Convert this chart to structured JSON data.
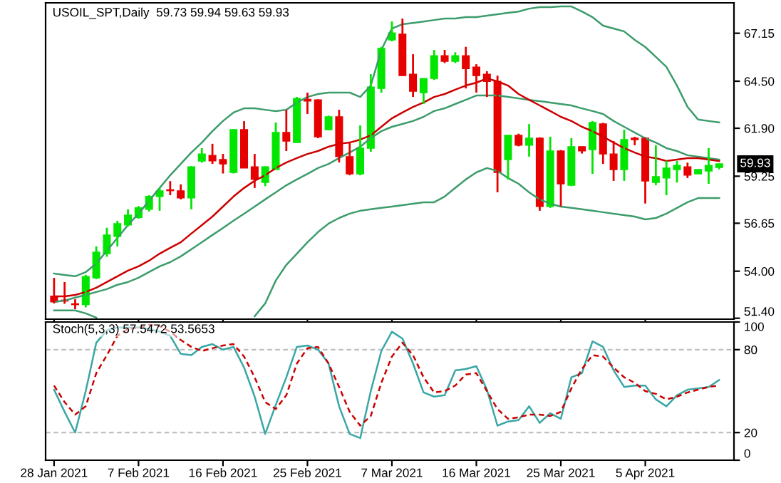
{
  "chart_data": [
    {
      "type": "candlestick",
      "title": "USOIL_SPT,Daily  59.73 59.94 59.63 59.93",
      "ohlc": [
        [
          52.62,
          53.63,
          52.22,
          52.3
        ],
        [
          52.4,
          53.4,
          52.2,
          52.35
        ],
        [
          52.2,
          52.45,
          51.9,
          52.15
        ],
        [
          52.15,
          53.8,
          52.0,
          53.7
        ],
        [
          53.63,
          55.37,
          53.56,
          55.05
        ],
        [
          54.97,
          56.4,
          54.8,
          56.0
        ],
        [
          55.92,
          56.79,
          55.37,
          56.63
        ],
        [
          56.55,
          57.42,
          56.47,
          57.1
        ],
        [
          56.97,
          57.6,
          56.9,
          57.5
        ],
        [
          57.42,
          58.2,
          57.3,
          58.13
        ],
        [
          58.13,
          58.6,
          57.34,
          58.44
        ],
        [
          58.5,
          58.98,
          58.2,
          58.45
        ],
        [
          58.44,
          58.8,
          57.97,
          58.05
        ],
        [
          58.05,
          59.8,
          57.42,
          59.77
        ],
        [
          60.09,
          60.8,
          60.0,
          60.48
        ],
        [
          60.4,
          61.04,
          59.93,
          60.1
        ],
        [
          60.17,
          60.48,
          59.4,
          59.93
        ],
        [
          59.46,
          61.85,
          59.4,
          61.82
        ],
        [
          61.82,
          62.29,
          59.7,
          59.7
        ],
        [
          59.77,
          60.48,
          58.6,
          59.07
        ],
        [
          58.91,
          59.8,
          58.7,
          59.77
        ],
        [
          59.62,
          62.22,
          59.62,
          61.67
        ],
        [
          61.67,
          62.92,
          60.64,
          61.19
        ],
        [
          61.11,
          63.63,
          61.11,
          63.55
        ],
        [
          63.5,
          63.87,
          62.69,
          63.4
        ],
        [
          63.47,
          63.5,
          61.35,
          61.43
        ],
        [
          61.82,
          62.6,
          61.8,
          62.53
        ],
        [
          62.53,
          62.92,
          60.01,
          60.33
        ],
        [
          60.33,
          61.11,
          59.3,
          59.38
        ],
        [
          59.38,
          62.06,
          59.3,
          60.8
        ],
        [
          60.8,
          64.89,
          60.6,
          64.18
        ],
        [
          64.1,
          66.4,
          63.87,
          66.31
        ],
        [
          66.78,
          67.8,
          66.7,
          67.17
        ],
        [
          67.1,
          67.96,
          64.81,
          64.81
        ],
        [
          64.89,
          65.99,
          63.63,
          63.95
        ],
        [
          63.87,
          64.65,
          63.24,
          64.65
        ],
        [
          64.65,
          66.23,
          64.57,
          65.91
        ],
        [
          65.91,
          66.23,
          65.5,
          65.6
        ],
        [
          65.6,
          66.1,
          65.5,
          65.91
        ],
        [
          65.91,
          66.4,
          64.1,
          65.2
        ],
        [
          65.28,
          65.44,
          63.87,
          64.81
        ],
        [
          64.89,
          65.05,
          63.63,
          64.49
        ],
        [
          64.49,
          64.81,
          58.36,
          59.46
        ],
        [
          60.17,
          61.51,
          59.07,
          61.51
        ],
        [
          61.51,
          61.6,
          60.9,
          60.96
        ],
        [
          60.96,
          62.13,
          60.33,
          61.35
        ],
        [
          61.35,
          61.4,
          57.34,
          57.58
        ],
        [
          57.58,
          61.43,
          57.5,
          60.64
        ],
        [
          60.64,
          60.7,
          57.58,
          58.83
        ],
        [
          58.75,
          61.35,
          58.7,
          60.88
        ],
        [
          60.88,
          60.9,
          60.5,
          60.65
        ],
        [
          60.72,
          62.3,
          59.38,
          62.22
        ],
        [
          62.14,
          62.2,
          59.93,
          60.48
        ],
        [
          60.48,
          61.19,
          58.99,
          59.62
        ],
        [
          59.62,
          61.82,
          58.99,
          61.27
        ],
        [
          61.35,
          61.43,
          60.96,
          61.27
        ],
        [
          61.35,
          61.4,
          57.74,
          58.99
        ],
        [
          58.91,
          60.96,
          58.75,
          59.23
        ],
        [
          59.15,
          60.1,
          58.2,
          59.7
        ],
        [
          59.62,
          60.09,
          58.9,
          59.85
        ],
        [
          59.77,
          60.0,
          59.15,
          59.31
        ],
        [
          59.38,
          59.62,
          59.38,
          59.62
        ],
        [
          59.54,
          60.8,
          58.83,
          59.85
        ],
        [
          59.73,
          59.94,
          59.63,
          59.93
        ]
      ],
      "colors": [
        "#e60000",
        "#e60000",
        "#e60000",
        "#00e600",
        "#00e600",
        "#00e600",
        "#00e600",
        "#00e600",
        "#00e600",
        "#00e600",
        "#00e600",
        "#e60000",
        "#e60000",
        "#00e600",
        "#00e600",
        "#e60000",
        "#e60000",
        "#00e600",
        "#e60000",
        "#e60000",
        "#00e600",
        "#00e600",
        "#e60000",
        "#00e600",
        "#e60000",
        "#e60000",
        "#00e600",
        "#e60000",
        "#e60000",
        "#00e600",
        "#00e600",
        "#00e600",
        "#00e600",
        "#e60000",
        "#e60000",
        "#00e600",
        "#00e600",
        "#e60000",
        "#00e600",
        "#e60000",
        "#e60000",
        "#e60000",
        "#e60000",
        "#00e600",
        "#e60000",
        "#00e600",
        "#e60000",
        "#00e600",
        "#e60000",
        "#00e600",
        "#e60000",
        "#00e600",
        "#e60000",
        "#e60000",
        "#00e600",
        "#e60000",
        "#e60000",
        "#00e600",
        "#00e600",
        "#00e600",
        "#e60000",
        "#00e600",
        "#00e600",
        "#00e600"
      ],
      "series": [
        {
          "type": "line",
          "color": "#3c9c6c",
          "values": [
            53.87,
            53.79,
            53.72,
            53.95,
            54.42,
            55.13,
            55.84,
            56.55,
            57.18,
            57.89,
            58.6,
            59.3,
            59.93,
            60.56,
            61.11,
            61.74,
            62.3,
            62.77,
            63.0,
            63.0,
            62.92,
            62.85,
            62.92,
            63.32,
            63.63,
            63.79,
            63.87,
            63.87,
            63.87,
            63.63,
            64.26,
            66.23,
            67.41,
            67.65,
            67.72,
            67.8,
            67.88,
            67.96,
            67.96,
            68.04,
            68.04,
            68.12,
            68.2,
            68.28,
            68.35,
            68.51,
            68.59,
            68.59,
            68.63,
            68.63,
            68.35,
            68.04,
            67.57,
            67.41,
            67.25,
            66.78,
            66.39,
            65.84,
            65.29,
            64.26,
            63.08,
            62.38,
            62.3,
            62.22
          ]
        },
        {
          "type": "line",
          "color": "#3c9c6c",
          "values": [
            52.3,
            52.38,
            52.54,
            52.69,
            52.85,
            53.01,
            53.25,
            53.4,
            53.64,
            53.95,
            54.27,
            54.5,
            54.82,
            55.21,
            55.6,
            56.0,
            56.39,
            56.79,
            57.18,
            57.57,
            57.97,
            58.36,
            58.75,
            59.07,
            59.38,
            59.7,
            59.93,
            60.25,
            60.56,
            60.88,
            61.35,
            61.74,
            61.98,
            62.14,
            62.3,
            62.53,
            62.85,
            63.0,
            63.24,
            63.47,
            63.71,
            63.71,
            63.71,
            63.63,
            63.55,
            63.47,
            63.4,
            63.32,
            63.24,
            63.16,
            63.0,
            62.85,
            62.69,
            62.3,
            61.98,
            61.66,
            61.35,
            61.11,
            60.8,
            60.64,
            60.41,
            60.33,
            60.25,
            60.17
          ]
        },
        {
          "type": "line",
          "color": "#cc0000",
          "values": [
            52.61,
            52.61,
            52.69,
            52.85,
            53.09,
            53.4,
            53.72,
            54.03,
            54.27,
            54.58,
            54.97,
            55.29,
            55.6,
            56.08,
            56.55,
            57.02,
            57.57,
            58.13,
            58.6,
            59.0,
            59.3,
            59.7,
            60.01,
            60.25,
            60.48,
            60.64,
            60.88,
            61.04,
            61.11,
            61.27,
            61.51,
            61.98,
            62.45,
            62.77,
            63.08,
            63.32,
            63.63,
            63.79,
            64.03,
            64.26,
            64.42,
            64.65,
            64.49,
            64.26,
            63.79,
            63.47,
            63.16,
            62.85,
            62.53,
            62.3,
            61.98,
            61.74,
            61.43,
            61.11,
            60.8,
            60.56,
            60.33,
            60.25,
            60.09,
            60.17,
            60.25,
            60.25,
            60.17,
            60.09
          ]
        },
        {
          "type": "line",
          "color": "#3c9c6c",
          "values": [
            51.83,
            51.83,
            51.83,
            51.67,
            51.43,
            null,
            null,
            null,
            null,
            null,
            null,
            null,
            null,
            null,
            null,
            null,
            null,
            null,
            null,
            51.51,
            52.22,
            53.48,
            54.35,
            54.97,
            55.6,
            56.16,
            56.63,
            56.94,
            57.18,
            57.34,
            57.42,
            57.5,
            57.57,
            57.65,
            57.73,
            57.81,
            57.81,
            58.13,
            58.6,
            59.07,
            59.46,
            59.7,
            59.54,
            59.15,
            58.83,
            58.36,
            57.97,
            57.73,
            57.57,
            57.5,
            57.42,
            57.34,
            57.26,
            57.18,
            57.1,
            57.02,
            56.86,
            56.94,
            57.18,
            57.5,
            57.81,
            58.04,
            58.04,
            58.04
          ]
        }
      ],
      "ylim": [
        51.35,
        68.83
      ],
      "yticks": [
        {
          "value": 51.4,
          "label": "51.40"
        },
        {
          "value": 54.0,
          "label": "54.00"
        },
        {
          "value": 56.65,
          "label": "56.65"
        },
        {
          "value": 59.25,
          "label": "59.25"
        },
        {
          "value": 61.9,
          "label": "61.90"
        },
        {
          "value": 64.5,
          "label": "64.50"
        },
        {
          "value": 67.15,
          "label": "67.15"
        }
      ],
      "annotations": [
        {
          "text": "59.93",
          "y": 59.93
        }
      ],
      "tick_labels": "y"
    },
    {
      "type": "line",
      "title": "Stoch(5,3,3) 57.5472 53.5653",
      "categories": [
        "28 Jan 2021",
        null,
        null,
        null,
        null,
        null,
        null,
        null,
        "7 Feb 2021",
        null,
        null,
        null,
        null,
        null,
        null,
        null,
        "16 Feb 2021",
        null,
        null,
        null,
        null,
        null,
        null,
        null,
        "25 Feb 2021",
        null,
        null,
        null,
        null,
        null,
        null,
        null,
        "7 Mar 2021",
        null,
        null,
        null,
        null,
        null,
        null,
        null,
        "16 Mar 2021",
        null,
        null,
        null,
        null,
        null,
        null,
        null,
        "25 Mar 2021",
        null,
        null,
        null,
        null,
        null,
        null,
        null,
        "5 Apr 2021",
        null,
        null,
        null,
        null,
        null,
        null,
        null
      ],
      "series": [
        {
          "color": "#3aa6a6",
          "line_style": "solid",
          "values": [
            51,
            35,
            20,
            50,
            85,
            94,
            96,
            96,
            96,
            95,
            93,
            90,
            77,
            76,
            82,
            84,
            80,
            82,
            67,
            46,
            19,
            40,
            60,
            82,
            83,
            80,
            70,
            39,
            19,
            16,
            50,
            79,
            93,
            88,
            70,
            49,
            46,
            47,
            65,
            66,
            68,
            51,
            25,
            28,
            29,
            39,
            27,
            34,
            30,
            60,
            63,
            86,
            82,
            65,
            53,
            54,
            54,
            44,
            39,
            47,
            51,
            52,
            53,
            58
          ]
        },
        {
          "color": "#cc0000",
          "line_style": "dashed",
          "values": [
            54,
            42,
            33,
            39,
            63,
            76,
            90,
            95,
            96,
            98,
            97,
            93,
            87,
            82,
            79,
            81,
            83,
            84,
            75,
            60,
            42,
            37,
            47,
            70,
            81,
            82,
            70,
            53,
            35,
            25,
            32,
            56,
            75,
            85,
            76,
            60,
            49,
            50,
            54,
            62,
            63,
            50,
            37,
            30,
            31,
            33,
            33,
            32,
            35,
            52,
            66,
            76,
            75,
            67,
            60,
            56,
            50,
            48,
            44,
            46,
            49,
            51,
            53,
            54
          ]
        }
      ],
      "ylim": [
        0,
        100
      ],
      "yticks": [
        0,
        20,
        80,
        100
      ],
      "ref_lines": [
        {
          "axis": "y",
          "value": 20,
          "color": "#c0c0c0",
          "line_style": "dashed"
        },
        {
          "axis": "y",
          "value": 80,
          "color": "#c0c0c0",
          "line_style": "dashed"
        }
      ]
    }
  ]
}
